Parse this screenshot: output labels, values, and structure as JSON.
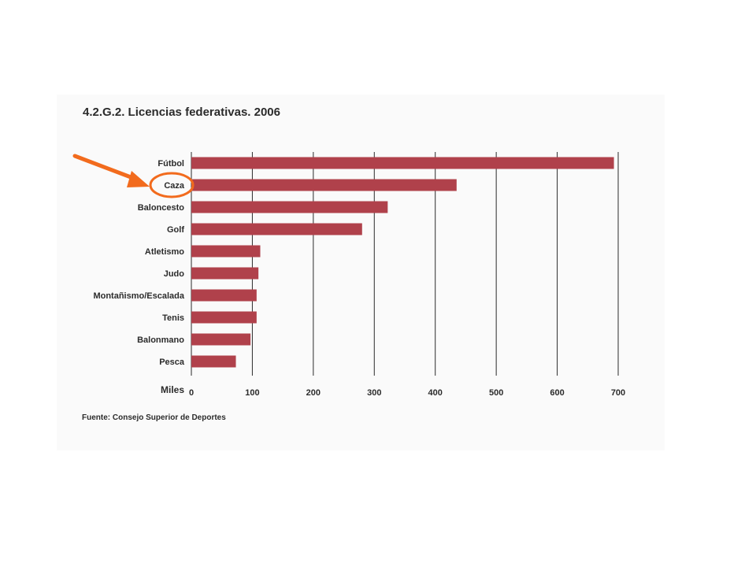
{
  "title": "4.2.G.2. Licencias federativas. 2006",
  "source": "Fuente: Consejo Superior de Deportes",
  "highlight": {
    "category": "Caza",
    "color": "#f26b1d"
  },
  "colors": {
    "bar": "#b0414b",
    "grid": "#2b2b2b",
    "text": "#2b2b2b"
  },
  "chart_data": {
    "type": "bar",
    "orientation": "horizontal",
    "title": "4.2.G.2. Licencias federativas. 2006",
    "xlabel": "Miles",
    "ylabel": "",
    "xlim": [
      0,
      700
    ],
    "xticks": [
      "0",
      "100",
      "200",
      "300",
      "400",
      "500",
      "600",
      "700"
    ],
    "grid": true,
    "categories": [
      "Fútbol",
      "Caza",
      "Baloncesto",
      "Golf",
      "Atletismo",
      "Judo",
      "Montañismo/Escalada",
      "Tenis",
      "Balonmano",
      "Pesca"
    ],
    "values": [
      693,
      435,
      322,
      280,
      113,
      110,
      107,
      107,
      97,
      73
    ]
  }
}
